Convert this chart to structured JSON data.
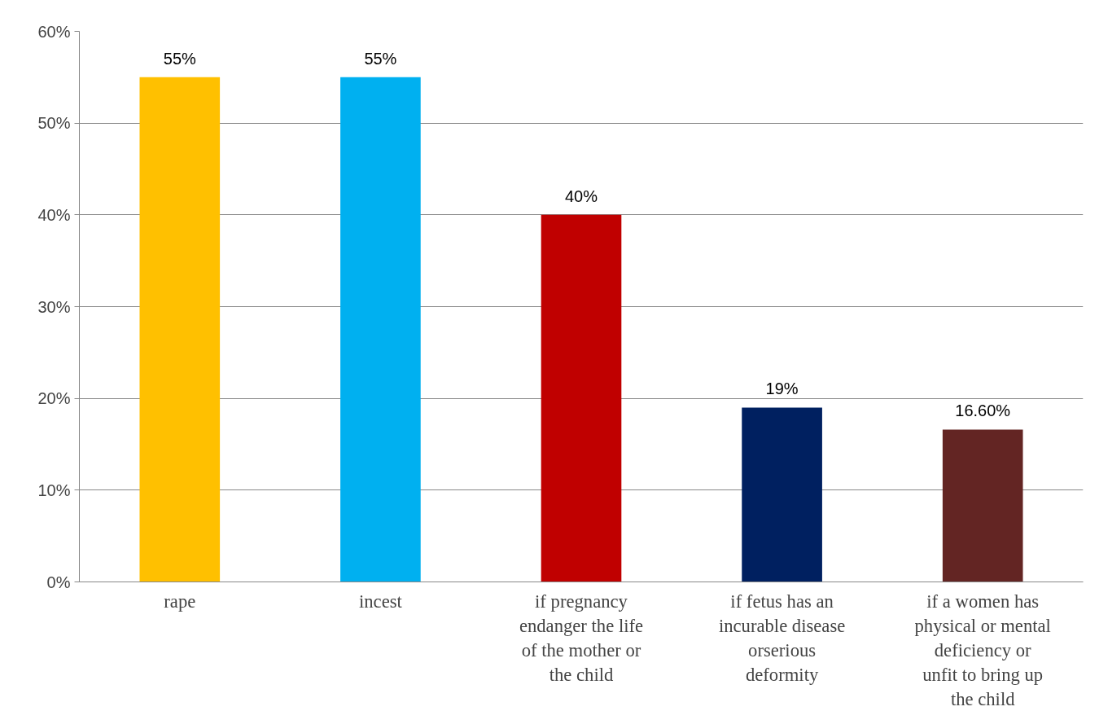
{
  "chart_data": {
    "type": "bar",
    "categories": [
      "rape",
      "incest",
      "if pregnancy endanger the life of the mother or the child",
      "if fetus has an incurable disease orserious deformity",
      "if a women has physical or mental deficiency or unfit to bring up the child"
    ],
    "values": [
      55,
      55,
      40,
      19,
      16.6
    ],
    "colors": [
      "#ffc000",
      "#00b0f0",
      "#c00000",
      "#002060",
      "#632523"
    ],
    "value_labels": [
      "55%",
      "55%",
      "40%",
      "19%",
      "16.60%"
    ],
    "ylim": [
      0,
      60
    ],
    "yticks": [
      {
        "value": 0,
        "label": "0%"
      },
      {
        "value": 10,
        "label": "10%"
      },
      {
        "value": 20,
        "label": "20%"
      },
      {
        "value": 30,
        "label": "30%"
      },
      {
        "value": 40,
        "label": "40%"
      },
      {
        "value": 50,
        "label": "50%"
      },
      {
        "value": 60,
        "label": "60%"
      }
    ],
    "grid": "y"
  }
}
